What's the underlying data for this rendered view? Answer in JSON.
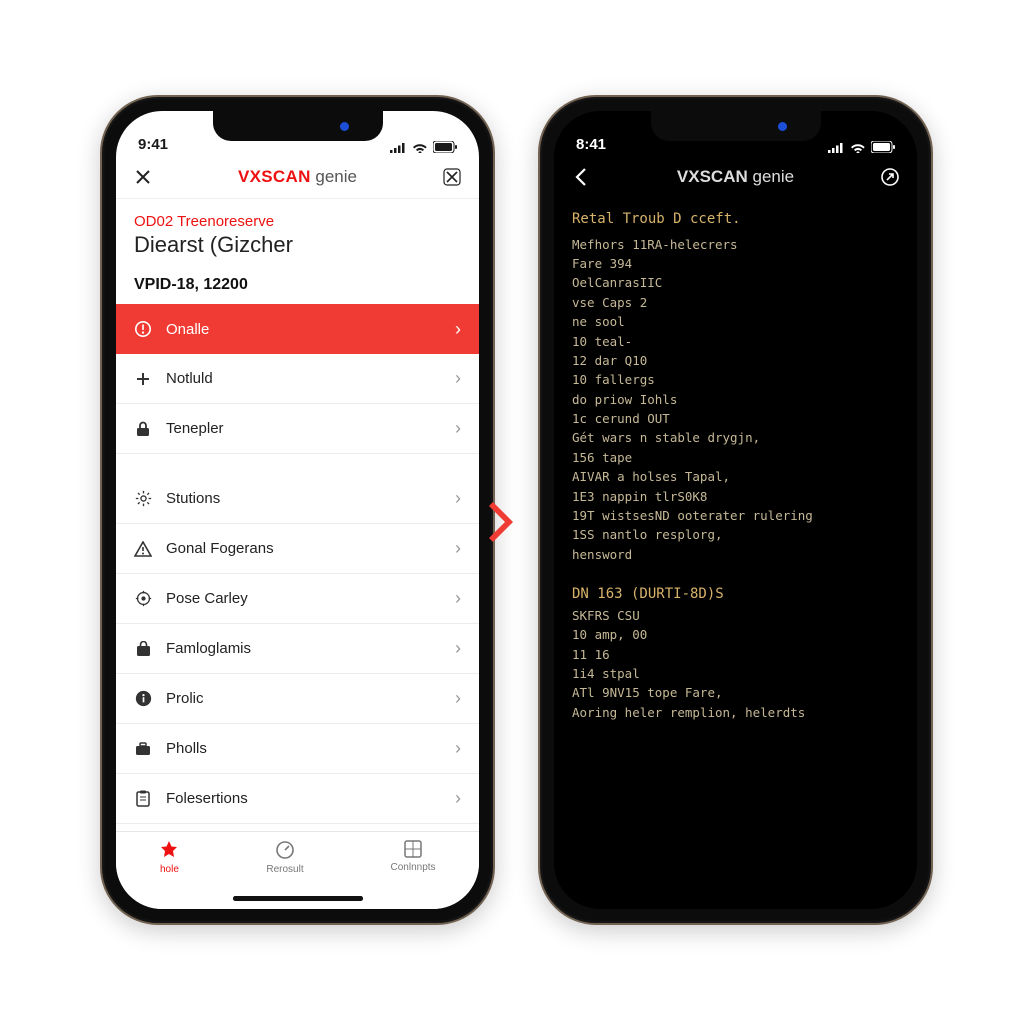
{
  "colors": {
    "accent_red": "#ef3b33",
    "brand_red": "#ee1111",
    "text_dark": "#1a1a1a",
    "border_light": "#ececec",
    "term_text": "#c5b896",
    "term_heading": "#d7b36a",
    "dark_bg": "#000000",
    "light_bg": "#ffffff"
  },
  "statusbar": {
    "time_left": "9:41",
    "time_right": "8:41"
  },
  "brand": {
    "prefix": "VXSCAN",
    "suffix": " genie"
  },
  "left": {
    "header": {
      "subtitle": "OD02 Treenoreserve",
      "title": "Diearst (Gizcher",
      "code": "VPID-18, 12200"
    },
    "menu": [
      {
        "icon": "alert-circle",
        "label": "Onalle",
        "highlighted": true
      },
      {
        "icon": "plus",
        "label": "Notluld",
        "highlighted": false
      },
      {
        "icon": "lock",
        "label": "Tenepler",
        "highlighted": false
      },
      {
        "icon": "spacer"
      },
      {
        "icon": "gear",
        "label": "Stutions",
        "highlighted": false
      },
      {
        "icon": "warning",
        "label": "Gonal Fogerans",
        "highlighted": false
      },
      {
        "icon": "target",
        "label": "Pose Carley",
        "highlighted": false
      },
      {
        "icon": "bag",
        "label": "Famloglamis",
        "highlighted": false
      },
      {
        "icon": "info",
        "label": "Prolic",
        "highlighted": false
      },
      {
        "icon": "briefcase",
        "label": "Pholls",
        "highlighted": false
      },
      {
        "icon": "clipboard",
        "label": "Folesertions",
        "highlighted": false
      }
    ],
    "tabs": [
      {
        "icon": "star",
        "label": "hole",
        "active": true
      },
      {
        "icon": "gauge",
        "label": "Rerosult",
        "active": false
      },
      {
        "icon": "grid",
        "label": "Conlnnpts",
        "active": false
      }
    ]
  },
  "right": {
    "section1_heading": "Retal Troub D cceft.",
    "section1_lines": [
      "Mefhors 11RA-helecrers",
      "Fare 394",
      "OelCanrasIIC",
      "vse Caps 2",
      "ne sool",
      "10 teal-",
      "12 dar Q10",
      "10 fallergs",
      "do priow Iohls",
      "1c cerund OUT",
      "Gét wars n stable drygjn,",
      "156 tape",
      "AIVAR a holses Tapal,",
      "1E3 nappin tlrS0K8",
      "19T wistsesND ooterater rulering",
      "1SS nantlo resplorg,",
      "hensword"
    ],
    "section2_heading": "DN 163 (DURTI-8D)S",
    "section2_lines": [
      "SKFRS CSU",
      "10 amp, 00",
      "11 16",
      "1i4 stpal",
      "ATl 9NV15 tope Fare,",
      "Aoring heler remplion, helerdts"
    ]
  }
}
